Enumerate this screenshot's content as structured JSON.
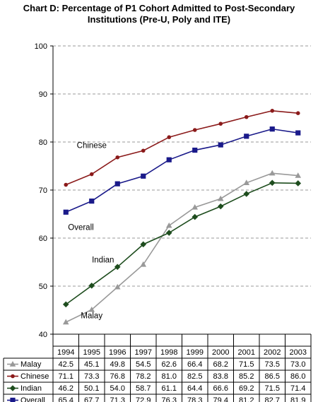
{
  "chart_data": {
    "type": "line",
    "title": [
      "Chart D: Percentage of P1 Cohort Admitted to Post-Secondary",
      "Institutions (Pre-U, Poly and ITE)"
    ],
    "categories": [
      "1994",
      "1995",
      "1996",
      "1997",
      "1998",
      "1999",
      "2000",
      "2001",
      "2002",
      "2003"
    ],
    "ylim": [
      40,
      100
    ],
    "yticks": [
      "40",
      "50",
      "60",
      "70",
      "80",
      "90",
      "100"
    ],
    "grid": "horizontal dashed",
    "series": [
      {
        "name": "Malay",
        "color": "#999999",
        "marker": "triangle",
        "values": [
          42.5,
          45.1,
          49.8,
          54.5,
          62.6,
          66.4,
          68.2,
          71.5,
          73.5,
          73.0
        ],
        "values_text": [
          "42.5",
          "45.1",
          "49.8",
          "54.5",
          "62.6",
          "66.4",
          "68.2",
          "71.5",
          "73.5",
          "73.0"
        ]
      },
      {
        "name": "Chinese",
        "color": "#8b1a1a",
        "marker": "circle",
        "values": [
          71.1,
          73.3,
          76.8,
          78.2,
          81.0,
          82.5,
          83.8,
          85.2,
          86.5,
          86.0
        ],
        "values_text": [
          "71.1",
          "73.3",
          "76.8",
          "78.2",
          "81.0",
          "82.5",
          "83.8",
          "85.2",
          "86.5",
          "86.0"
        ]
      },
      {
        "name": "Indian",
        "color": "#1e4d1e",
        "marker": "diamond",
        "values": [
          46.2,
          50.1,
          54.0,
          58.7,
          61.1,
          64.4,
          66.6,
          69.2,
          71.5,
          71.4
        ],
        "values_text": [
          "46.2",
          "50.1",
          "54.0",
          "58.7",
          "61.1",
          "64.4",
          "66.6",
          "69.2",
          "71.5",
          "71.4"
        ]
      },
      {
        "name": "Overall",
        "color": "#1a1a8a",
        "marker": "square",
        "values": [
          65.4,
          67.7,
          71.3,
          72.9,
          76.3,
          78.3,
          79.4,
          81.2,
          82.7,
          81.9
        ],
        "values_text": [
          "65.4",
          "67.7",
          "71.3",
          "72.9",
          "76.3",
          "78.3",
          "79.4",
          "81.2",
          "82.7",
          "81.9"
        ]
      }
    ],
    "annotations": [
      {
        "series": "Chinese",
        "text": "Chinese"
      },
      {
        "series": "Overall",
        "text": "Overall"
      },
      {
        "series": "Indian",
        "text": "Indian"
      },
      {
        "series": "Malay",
        "text": "Malay"
      }
    ]
  }
}
